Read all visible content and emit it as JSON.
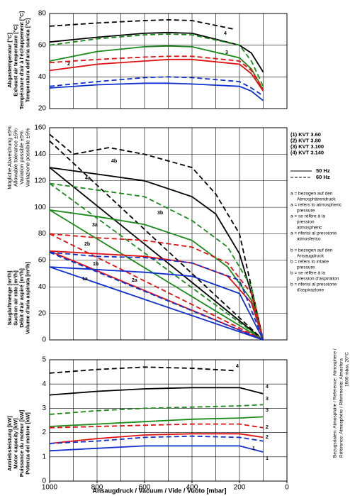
{
  "chart_data": [
    {
      "type": "line",
      "ylabel": [
        "Abgastemperatur [°C]",
        "Exhaust air temperature [°C]",
        "Température d'air à l'échappement [°C]",
        "Temperatura dell'aria scarica [°C]"
      ],
      "xlim": [
        1000,
        0
      ],
      "ylim": [
        20,
        80
      ],
      "yticks": [
        20,
        40,
        60,
        80
      ],
      "xgrid": [
        1000,
        900,
        800,
        700,
        600,
        500,
        400,
        300,
        200,
        100,
        0
      ],
      "series": [
        {
          "color": "#000000",
          "dash": false,
          "x": [
            1000,
            800,
            600,
            500,
            400,
            200,
            150,
            100
          ],
          "values": [
            62,
            65,
            67.5,
            68,
            67.5,
            60,
            55,
            43
          ]
        },
        {
          "color": "#000000",
          "dash": true,
          "label": "4",
          "x": [
            1000,
            800,
            600,
            500,
            400,
            220
          ],
          "values": [
            72,
            74,
            75.5,
            76,
            75.5,
            70
          ]
        },
        {
          "color": "#1a8a1a",
          "dash": false,
          "x": [
            1000,
            800,
            600,
            500,
            400,
            200,
            150,
            100
          ],
          "values": [
            50,
            56,
            59,
            59.5,
            59,
            52,
            45,
            32
          ]
        },
        {
          "color": "#1a8a1a",
          "dash": true,
          "label": "3",
          "x": [
            1000,
            800,
            600,
            500,
            400,
            200,
            150,
            100
          ],
          "values": [
            60,
            64,
            66.5,
            67,
            66.5,
            60,
            50,
            34
          ]
        },
        {
          "color": "#e01010",
          "dash": false,
          "label": "2",
          "x": [
            1000,
            800,
            600,
            500,
            400,
            200,
            150,
            100
          ],
          "values": [
            44,
            48,
            50,
            51,
            51,
            48,
            42,
            31
          ]
        },
        {
          "color": "#e01010",
          "dash": true,
          "x": [
            1000,
            800,
            600,
            500,
            400,
            200,
            150,
            100
          ],
          "values": [
            49,
            51,
            52.5,
            53,
            53,
            50,
            44,
            32
          ]
        },
        {
          "color": "#1030d0",
          "dash": false,
          "x": [
            1000,
            800,
            600,
            500,
            400,
            200,
            150,
            100
          ],
          "values": [
            33,
            35,
            36,
            36,
            35.5,
            34,
            31,
            25
          ]
        },
        {
          "color": "#1030d0",
          "dash": true,
          "x": [
            1000,
            800,
            600,
            500,
            400,
            200,
            150,
            100
          ],
          "values": [
            34,
            37,
            39.5,
            40,
            39.5,
            37,
            33,
            28
          ]
        }
      ]
    },
    {
      "type": "line",
      "note": [
        "Mögliche Abweichung ±5%",
        "Allowable tolerance ±5%",
        "Variation possible ±5%",
        "Variazione possibile ±5%"
      ],
      "ylabel": [
        "Saugluftmenge [m³/h]",
        "Suction air rate [m³/h]",
        "Débit d'air aspiré [m³/h]",
        "Volume d'aria aspirata [m³/h]"
      ],
      "xlim": [
        1000,
        0
      ],
      "ylim": [
        0,
        160
      ],
      "yticks": [
        0,
        20,
        40,
        60,
        80,
        100,
        120,
        140,
        160
      ],
      "xgrid": [
        1000,
        900,
        800,
        700,
        600,
        500,
        400,
        300,
        200,
        100,
        0
      ],
      "series": [
        {
          "color": "#000000",
          "dash": false,
          "x": [
            1000,
            800,
            600,
            400,
            300,
            200,
            150,
            100
          ],
          "values": [
            130,
            125,
            120,
            108,
            95,
            65,
            35,
            0
          ]
        },
        {
          "color": "#000000",
          "dash": true,
          "label": "4b",
          "x": [
            1000,
            900,
            750,
            600,
            400,
            300,
            200,
            100
          ],
          "values": [
            155,
            140,
            145,
            140,
            130,
            110,
            80,
            0
          ]
        },
        {
          "color": "#000000",
          "dash": false,
          "label": "4a",
          "x": [
            1000,
            100
          ],
          "values": [
            130,
            0
          ]
        },
        {
          "color": "#000000",
          "dash": true,
          "x": [
            1000,
            100
          ],
          "values": [
            150,
            0
          ]
        },
        {
          "color": "#1a8a1a",
          "dash": false,
          "label": "3b",
          "x": [
            1000,
            800,
            600,
            400,
            250,
            150,
            100
          ],
          "values": [
            98,
            93,
            87,
            75,
            55,
            30,
            0
          ]
        },
        {
          "color": "#1a8a1a",
          "dash": true,
          "x": [
            1000,
            800,
            600,
            400,
            250,
            150,
            100
          ],
          "values": [
            118,
            113,
            108,
            90,
            70,
            40,
            0
          ]
        },
        {
          "color": "#1a8a1a",
          "dash": false,
          "label": "3a",
          "x": [
            1000,
            100
          ],
          "values": [
            98,
            0
          ]
        },
        {
          "color": "#1a8a1a",
          "dash": true,
          "x": [
            1000,
            100
          ],
          "values": [
            118,
            0
          ]
        },
        {
          "color": "#e01010",
          "dash": false,
          "label": "2b",
          "x": [
            1000,
            800,
            600,
            400,
            250,
            150,
            100
          ],
          "values": [
            67,
            65,
            63,
            58,
            48,
            28,
            0
          ]
        },
        {
          "color": "#e01010",
          "dash": true,
          "x": [
            1000,
            800,
            600,
            400,
            250,
            150,
            100
          ],
          "values": [
            80,
            77,
            75,
            70,
            58,
            35,
            0
          ]
        },
        {
          "color": "#e01010",
          "dash": false,
          "label": "2a",
          "x": [
            1000,
            100
          ],
          "values": [
            67,
            0
          ]
        },
        {
          "color": "#e01010",
          "dash": true,
          "x": [
            1000,
            100
          ],
          "values": [
            80,
            0
          ]
        },
        {
          "color": "#1030d0",
          "dash": false,
          "label": "1b",
          "x": [
            1000,
            600,
            400,
            200,
            100
          ],
          "values": [
            55,
            51,
            48,
            35,
            0
          ]
        },
        {
          "color": "#1030d0",
          "dash": true,
          "x": [
            1000,
            800,
            600,
            400,
            200,
            100
          ],
          "values": [
            66,
            63,
            62,
            58,
            45,
            0
          ]
        },
        {
          "color": "#1030d0",
          "dash": false,
          "label": "1a",
          "x": [
            1000,
            100
          ],
          "values": [
            55,
            0
          ]
        },
        {
          "color": "#1030d0",
          "dash": true,
          "x": [
            1000,
            100
          ],
          "values": [
            66,
            0
          ]
        }
      ]
    },
    {
      "type": "line",
      "ylabel": [
        "Antriebsleistung [kW]",
        "Motor capacity [kW]",
        "Puissance du moteur [kW]",
        "Potenza del motore [kW]"
      ],
      "xlabel": "Ansaugdruck / Vacuum / Vide / Vuoto    [mbar]",
      "xlim": [
        1000,
        0
      ],
      "ylim": [
        0,
        5
      ],
      "yticks": [
        0,
        1,
        2,
        3,
        4,
        5
      ],
      "xticks": [
        1000,
        800,
        600,
        400,
        200,
        0
      ],
      "xgrid": [
        1000,
        900,
        800,
        700,
        600,
        500,
        400,
        300,
        200,
        100,
        0
      ],
      "series": [
        {
          "color": "#000000",
          "dash": false,
          "label": "4",
          "x": [
            1000,
            800,
            600,
            400,
            200,
            100
          ],
          "values": [
            3.55,
            3.7,
            3.8,
            3.85,
            3.85,
            3.6
          ]
        },
        {
          "color": "#000000",
          "dash": true,
          "label": "4",
          "x": [
            1000,
            800,
            600,
            400,
            220
          ],
          "values": [
            4.45,
            4.6,
            4.7,
            4.65,
            4.55
          ]
        },
        {
          "color": "#1a8a1a",
          "dash": false,
          "label": "3",
          "x": [
            1000,
            800,
            600,
            400,
            200,
            100
          ],
          "values": [
            2.25,
            2.35,
            2.45,
            2.55,
            2.6,
            2.65
          ]
        },
        {
          "color": "#1a8a1a",
          "dash": true,
          "label": "3",
          "x": [
            1000,
            800,
            600,
            400,
            200,
            100
          ],
          "values": [
            2.75,
            2.9,
            3.0,
            3.05,
            3.1,
            3.15
          ]
        },
        {
          "color": "#e01010",
          "dash": false,
          "label": "2",
          "x": [
            1000,
            800,
            600,
            400,
            200,
            100
          ],
          "values": [
            1.55,
            1.75,
            1.9,
            1.95,
            1.95,
            1.8
          ]
        },
        {
          "color": "#e01010",
          "dash": true,
          "label": "2",
          "x": [
            1000,
            800,
            600,
            400,
            200,
            100
          ],
          "values": [
            2.2,
            2.25,
            2.3,
            2.35,
            2.35,
            2.2
          ]
        },
        {
          "color": "#1030d0",
          "dash": false,
          "label": "1",
          "x": [
            1000,
            800,
            600,
            400,
            200,
            100
          ],
          "values": [
            1.25,
            1.35,
            1.45,
            1.45,
            1.45,
            1.2
          ]
        },
        {
          "color": "#1030d0",
          "dash": true,
          "label": "1",
          "x": [
            1000,
            800,
            600,
            400,
            200,
            100
          ],
          "values": [
            1.55,
            1.65,
            1.8,
            1.85,
            1.8,
            1.65
          ]
        }
      ]
    }
  ],
  "legend": {
    "items": [
      {
        "label": "(1)  KVT 3.60",
        "color": "#1030d0"
      },
      {
        "label": "(2)  KVT 3.80",
        "color": "#e01010"
      },
      {
        "label": "(3)  KVT 3.100",
        "color": "#1a8a1a"
      },
      {
        "label": "(4)  KVT 3.140",
        "color": "#000000"
      }
    ],
    "line_styles": [
      {
        "label": "50 Hz",
        "dash": false
      },
      {
        "label": "60 Hz",
        "dash": true
      }
    ],
    "notes": [
      [
        "a = bezogen auf den",
        "Atmosphärendruck"
      ],
      [
        "a = refers to atmospheric",
        "pressure"
      ],
      [
        "a = se réfère à la",
        "pression",
        "atmosphéric"
      ],
      [
        "a = riferisi al pressione",
        "atmosferico"
      ],
      [
        "b = bezogen auf den",
        "Ansaugdruck"
      ],
      [
        "b = refers to intake",
        "pressure"
      ],
      [
        "b = se réfère à la",
        "pression d'aspiration"
      ],
      [
        "b = riferisi al pressione",
        "d'aspirazione"
      ]
    ]
  },
  "reference": [
    "Bezugsdaten: Atmosphäre / Reference: Atmosphere /",
    "Référence: Atmosphère / Riferimento: Atmosfera",
    "1000 mbar, 20°C"
  ]
}
